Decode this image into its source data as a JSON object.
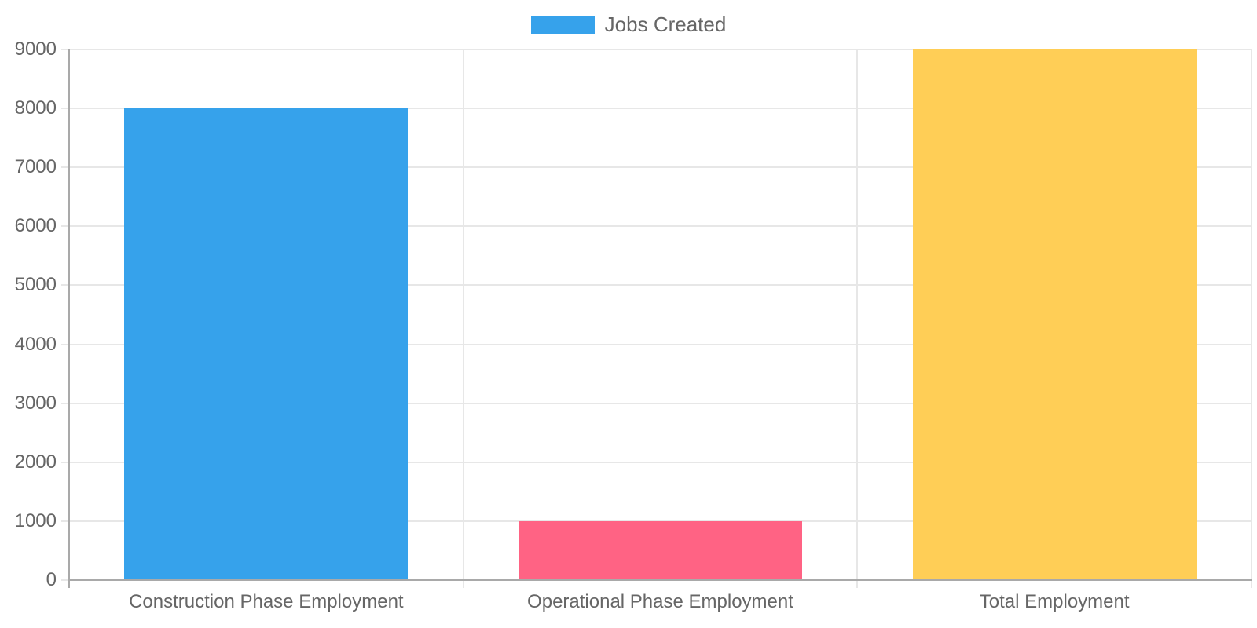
{
  "chart_data": {
    "type": "bar",
    "title": "",
    "legend": {
      "label": "Jobs Created",
      "swatch_color": "#36A2EB",
      "position": "top"
    },
    "categories": [
      "Construction Phase Employment",
      "Operational Phase Employment",
      "Total Employment"
    ],
    "series": [
      {
        "name": "Jobs Created",
        "values": [
          8000,
          1000,
          9000
        ],
        "bar_colors": [
          "#36A2EB",
          "#FF6384",
          "#FFCE56"
        ]
      }
    ],
    "xlabel": "",
    "ylabel": "",
    "ylim": [
      0,
      9000
    ],
    "ytick_step": 1000,
    "ytick_labels": [
      "0",
      "1000",
      "2000",
      "3000",
      "4000",
      "5000",
      "6000",
      "7000",
      "8000",
      "9000"
    ],
    "grid": true,
    "colors": {
      "gridline": "#e7e7e7",
      "axis_line": "#a9a9a9",
      "tick_text": "#666666"
    }
  }
}
